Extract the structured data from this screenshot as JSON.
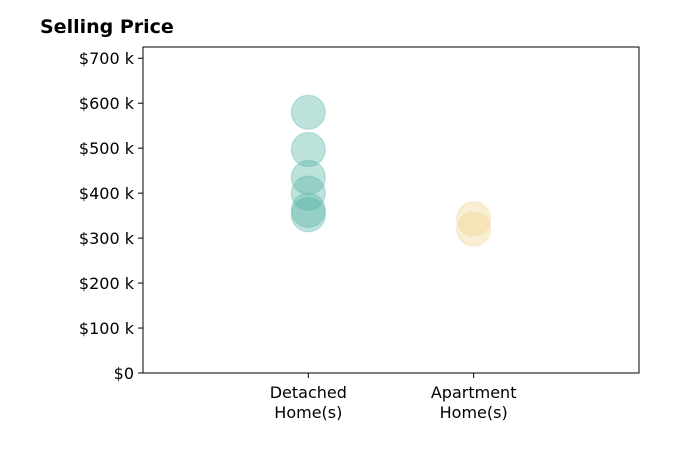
{
  "chart_data": {
    "type": "scatter",
    "title": "Selling Price",
    "xlabel": "",
    "ylabel": "",
    "categories": [
      [
        "Detached",
        "Home(s)"
      ],
      [
        "Apartment",
        "Home(s)"
      ]
    ],
    "y_ticks": [
      0,
      100000,
      200000,
      300000,
      400000,
      500000,
      600000,
      700000
    ],
    "y_tick_labels": [
      "$0",
      "$100 k",
      "$200 k",
      "$300 k",
      "$400 k",
      "$500 k",
      "$600 k",
      "$700 k"
    ],
    "ylim": [
      0,
      725000
    ],
    "x_range": [
      -1,
      2
    ],
    "grid": false,
    "series": [
      {
        "category_index": 0,
        "color": "#5ab4a6",
        "values": [
          580000,
          497000,
          435000,
          400000,
          362000,
          352000
        ]
      },
      {
        "category_index": 1,
        "color": "#f0d590",
        "values": [
          343000,
          320000
        ]
      }
    ]
  }
}
